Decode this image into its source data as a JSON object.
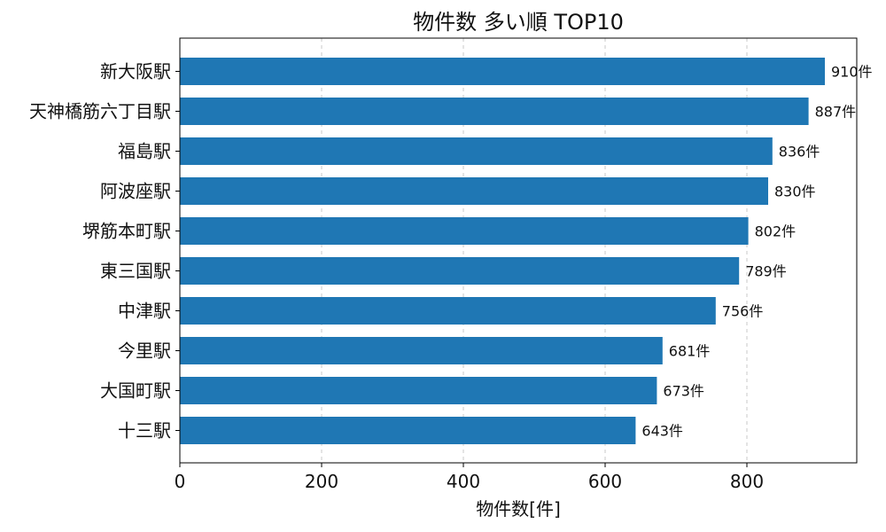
{
  "chart_data": {
    "type": "bar",
    "orientation": "horizontal",
    "title": "物件数 多い順 TOP10",
    "xlabel": "物件数[件]",
    "ylabel": "",
    "xlim": [
      0,
      955
    ],
    "xticks": [
      0,
      200,
      400,
      600,
      800
    ],
    "grid": true,
    "bar_color": "#1f77b4",
    "categories": [
      "新大阪駅",
      "天神橋筋六丁目駅",
      "福島駅",
      "阿波座駅",
      "堺筋本町駅",
      "東三国駅",
      "中津駅",
      "今里駅",
      "大国町駅",
      "十三駅"
    ],
    "values": [
      910,
      887,
      836,
      830,
      802,
      789,
      756,
      681,
      673,
      643
    ],
    "value_labels": [
      "910件",
      "887件",
      "836件",
      "830件",
      "802件",
      "789件",
      "756件",
      "681件",
      "673件",
      "643件"
    ]
  }
}
